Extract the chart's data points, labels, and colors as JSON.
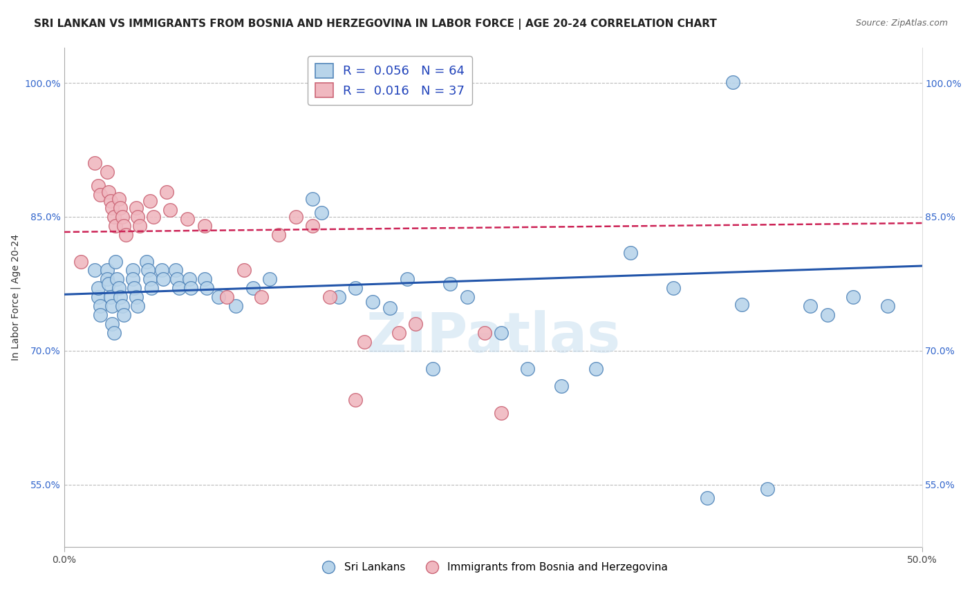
{
  "title": "SRI LANKAN VS IMMIGRANTS FROM BOSNIA AND HERZEGOVINA IN LABOR FORCE | AGE 20-24 CORRELATION CHART",
  "source": "Source: ZipAtlas.com",
  "ylabel": "In Labor Force | Age 20-24",
  "xlim": [
    0.0,
    0.5
  ],
  "ylim": [
    0.48,
    1.04
  ],
  "yticks": [
    0.55,
    0.7,
    0.85,
    1.0
  ],
  "ytick_labels": [
    "55.0%",
    "70.0%",
    "85.0%",
    "100.0%"
  ],
  "xticks": [
    0.0,
    0.5
  ],
  "xtick_labels": [
    "0.0%",
    "50.0%"
  ],
  "blue_color": "#b8d4ea",
  "blue_edge": "#5588bb",
  "pink_color": "#f0b8c0",
  "pink_edge": "#cc6677",
  "blue_line_color": "#2255aa",
  "pink_line_color": "#cc2255",
  "blue_scatter": [
    [
      0.018,
      0.79
    ],
    [
      0.02,
      0.76
    ],
    [
      0.02,
      0.77
    ],
    [
      0.021,
      0.75
    ],
    [
      0.021,
      0.74
    ],
    [
      0.025,
      0.79
    ],
    [
      0.025,
      0.78
    ],
    [
      0.026,
      0.775
    ],
    [
      0.027,
      0.76
    ],
    [
      0.028,
      0.75
    ],
    [
      0.028,
      0.73
    ],
    [
      0.029,
      0.72
    ],
    [
      0.03,
      0.8
    ],
    [
      0.031,
      0.78
    ],
    [
      0.032,
      0.77
    ],
    [
      0.033,
      0.76
    ],
    [
      0.034,
      0.75
    ],
    [
      0.035,
      0.74
    ],
    [
      0.04,
      0.79
    ],
    [
      0.04,
      0.78
    ],
    [
      0.041,
      0.77
    ],
    [
      0.042,
      0.76
    ],
    [
      0.043,
      0.75
    ],
    [
      0.048,
      0.8
    ],
    [
      0.049,
      0.79
    ],
    [
      0.05,
      0.78
    ],
    [
      0.051,
      0.77
    ],
    [
      0.057,
      0.79
    ],
    [
      0.058,
      0.78
    ],
    [
      0.065,
      0.79
    ],
    [
      0.066,
      0.78
    ],
    [
      0.067,
      0.77
    ],
    [
      0.073,
      0.78
    ],
    [
      0.074,
      0.77
    ],
    [
      0.082,
      0.78
    ],
    [
      0.083,
      0.77
    ],
    [
      0.09,
      0.76
    ],
    [
      0.1,
      0.75
    ],
    [
      0.11,
      0.77
    ],
    [
      0.12,
      0.78
    ],
    [
      0.145,
      0.87
    ],
    [
      0.15,
      0.855
    ],
    [
      0.16,
      0.76
    ],
    [
      0.17,
      0.77
    ],
    [
      0.18,
      0.755
    ],
    [
      0.19,
      0.748
    ],
    [
      0.2,
      0.78
    ],
    [
      0.215,
      0.68
    ],
    [
      0.225,
      0.775
    ],
    [
      0.235,
      0.76
    ],
    [
      0.255,
      0.72
    ],
    [
      0.27,
      0.68
    ],
    [
      0.29,
      0.66
    ],
    [
      0.31,
      0.68
    ],
    [
      0.33,
      0.81
    ],
    [
      0.355,
      0.77
    ],
    [
      0.375,
      0.535
    ],
    [
      0.395,
      0.752
    ],
    [
      0.41,
      0.545
    ],
    [
      0.435,
      0.75
    ],
    [
      0.445,
      0.74
    ],
    [
      0.46,
      0.76
    ],
    [
      0.48,
      0.75
    ],
    [
      0.39,
      1.001
    ]
  ],
  "pink_scatter": [
    [
      0.01,
      0.8
    ],
    [
      0.018,
      0.91
    ],
    [
      0.02,
      0.885
    ],
    [
      0.021,
      0.875
    ],
    [
      0.025,
      0.9
    ],
    [
      0.026,
      0.878
    ],
    [
      0.027,
      0.868
    ],
    [
      0.028,
      0.86
    ],
    [
      0.029,
      0.85
    ],
    [
      0.03,
      0.84
    ],
    [
      0.032,
      0.87
    ],
    [
      0.033,
      0.86
    ],
    [
      0.034,
      0.85
    ],
    [
      0.035,
      0.84
    ],
    [
      0.036,
      0.83
    ],
    [
      0.042,
      0.86
    ],
    [
      0.043,
      0.85
    ],
    [
      0.044,
      0.84
    ],
    [
      0.05,
      0.868
    ],
    [
      0.052,
      0.85
    ],
    [
      0.06,
      0.878
    ],
    [
      0.062,
      0.858
    ],
    [
      0.072,
      0.848
    ],
    [
      0.082,
      0.84
    ],
    [
      0.095,
      0.76
    ],
    [
      0.105,
      0.79
    ],
    [
      0.115,
      0.76
    ],
    [
      0.125,
      0.83
    ],
    [
      0.135,
      0.85
    ],
    [
      0.145,
      0.84
    ],
    [
      0.155,
      0.76
    ],
    [
      0.17,
      0.645
    ],
    [
      0.175,
      0.71
    ],
    [
      0.195,
      0.72
    ],
    [
      0.205,
      0.73
    ],
    [
      0.245,
      0.72
    ],
    [
      0.255,
      0.63
    ]
  ],
  "blue_trend_x": [
    0.0,
    0.5
  ],
  "blue_trend_y": [
    0.763,
    0.795
  ],
  "pink_trend_x": [
    0.0,
    0.5
  ],
  "pink_trend_y": [
    0.833,
    0.843
  ],
  "watermark": "ZIPatlas",
  "title_fontsize": 11,
  "label_fontsize": 10,
  "tick_fontsize": 10,
  "legend_fontsize": 13,
  "source_fontsize": 9
}
